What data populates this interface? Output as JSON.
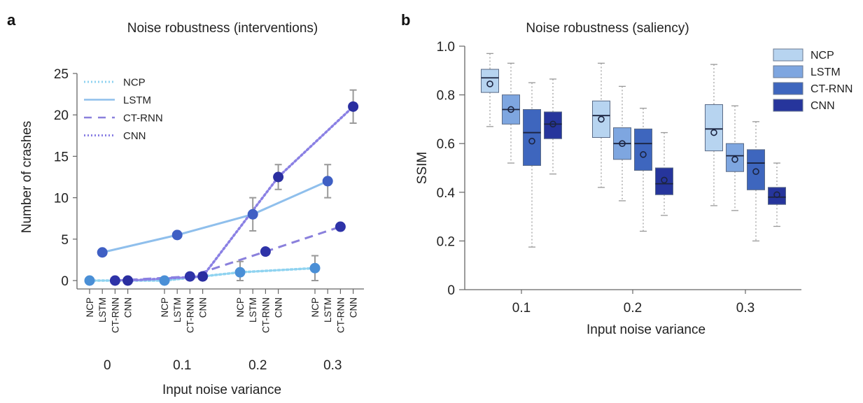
{
  "chart_data": [
    {
      "panel": "a",
      "type": "line",
      "title": "Noise robustness (interventions)",
      "xlabel": "Input noise variance",
      "ylabel": "Number of crashes",
      "ylim": [
        0,
        25
      ],
      "yticks": [
        "0",
        "5",
        "10",
        "15",
        "20",
        "25"
      ],
      "ytick_values": [
        0,
        5,
        10,
        15,
        20,
        25
      ],
      "x": [
        "0",
        "0.1",
        "0.2",
        "0.3"
      ],
      "subcategories": [
        "NCP",
        "LSTM",
        "CT-RNN",
        "CNN"
      ],
      "legend_position": "top-left",
      "series": [
        {
          "name": "NCP",
          "line_style": "dotted",
          "line_color": "#8fd3f0",
          "marker_color": "#4a8fd6",
          "values": [
            0,
            0,
            1,
            1.5
          ],
          "error_low": [
            null,
            null,
            0,
            0
          ],
          "error_high": [
            null,
            null,
            2.3,
            3
          ]
        },
        {
          "name": "LSTM",
          "line_style": "solid",
          "line_color": "#8fbfec",
          "marker_color": "#3f5fc4",
          "values": [
            3.4,
            5.5,
            8,
            12
          ],
          "error_low": [
            null,
            null,
            6,
            10
          ],
          "error_high": [
            null,
            null,
            10,
            14
          ]
        },
        {
          "name": "CT-RNN",
          "line_style": "dashed",
          "line_color": "#8a80dc",
          "marker_color": "#2e33a8",
          "values": [
            0,
            0.5,
            3.5,
            6.5
          ],
          "error_low": [
            null,
            null,
            null,
            null
          ],
          "error_high": [
            null,
            null,
            null,
            null
          ]
        },
        {
          "name": "CNN",
          "line_style": "dotted",
          "line_color": "#8a80e4",
          "marker_color": "#2a2ea0",
          "values": [
            0,
            0.5,
            12.5,
            21
          ],
          "error_low": [
            null,
            null,
            11,
            19
          ],
          "error_high": [
            null,
            null,
            14,
            23
          ]
        }
      ]
    },
    {
      "panel": "b",
      "type": "box",
      "title": "Noise robustness (saliency)",
      "xlabel": "Input noise variance",
      "ylabel": "SSIM",
      "ylim": [
        0,
        1.0
      ],
      "yticks": [
        "0",
        "0.2",
        "0.4",
        "0.6",
        "0.8",
        "1.0"
      ],
      "ytick_values": [
        0,
        0.2,
        0.4,
        0.6,
        0.8,
        1.0
      ],
      "categories": [
        "0.1",
        "0.2",
        "0.3"
      ],
      "legend_position": "top-right",
      "series": [
        {
          "name": "NCP",
          "color": "#b7d4f0",
          "boxes": [
            {
              "whisker_low": 0.67,
              "q1": 0.81,
              "median": 0.87,
              "q3": 0.905,
              "whisker_high": 0.97,
              "mean": 0.845
            },
            {
              "whisker_low": 0.42,
              "q1": 0.625,
              "median": 0.715,
              "q3": 0.775,
              "whisker_high": 0.93,
              "mean": 0.7
            },
            {
              "whisker_low": 0.345,
              "q1": 0.57,
              "median": 0.66,
              "q3": 0.76,
              "whisker_high": 0.925,
              "mean": 0.645
            }
          ]
        },
        {
          "name": "LSTM",
          "color": "#7ea6e0",
          "boxes": [
            {
              "whisker_low": 0.52,
              "q1": 0.68,
              "median": 0.74,
              "q3": 0.8,
              "whisker_high": 0.93,
              "mean": 0.74
            },
            {
              "whisker_low": 0.365,
              "q1": 0.535,
              "median": 0.6,
              "q3": 0.665,
              "whisker_high": 0.835,
              "mean": 0.6
            },
            {
              "whisker_low": 0.325,
              "q1": 0.485,
              "median": 0.55,
              "q3": 0.6,
              "whisker_high": 0.755,
              "mean": 0.535
            }
          ]
        },
        {
          "name": "CT-RNN",
          "color": "#3e66be",
          "boxes": [
            {
              "whisker_low": 0.175,
              "q1": 0.51,
              "median": 0.645,
              "q3": 0.74,
              "whisker_high": 0.85,
              "mean": 0.61
            },
            {
              "whisker_low": 0.24,
              "q1": 0.49,
              "median": 0.6,
              "q3": 0.66,
              "whisker_high": 0.745,
              "mean": 0.555
            },
            {
              "whisker_low": 0.2,
              "q1": 0.41,
              "median": 0.52,
              "q3": 0.575,
              "whisker_high": 0.69,
              "mean": 0.485
            }
          ]
        },
        {
          "name": "CNN",
          "color": "#26359c",
          "boxes": [
            {
              "whisker_low": 0.475,
              "q1": 0.62,
              "median": 0.68,
              "q3": 0.73,
              "whisker_high": 0.865,
              "mean": 0.68
            },
            {
              "whisker_low": 0.305,
              "q1": 0.39,
              "median": 0.435,
              "q3": 0.5,
              "whisker_high": 0.645,
              "mean": 0.45
            },
            {
              "whisker_low": 0.26,
              "q1": 0.35,
              "median": 0.38,
              "q3": 0.42,
              "whisker_high": 0.52,
              "mean": 0.39
            }
          ]
        }
      ]
    }
  ],
  "panels": {
    "a": {
      "letter": "a",
      "title": "Noise robustness (interventions)",
      "xlabel": "Input noise variance",
      "ylabel": "Number of crashes"
    },
    "b": {
      "letter": "b",
      "title": "Noise robustness (saliency)",
      "xlabel": "Input noise variance",
      "ylabel": "SSIM"
    }
  }
}
